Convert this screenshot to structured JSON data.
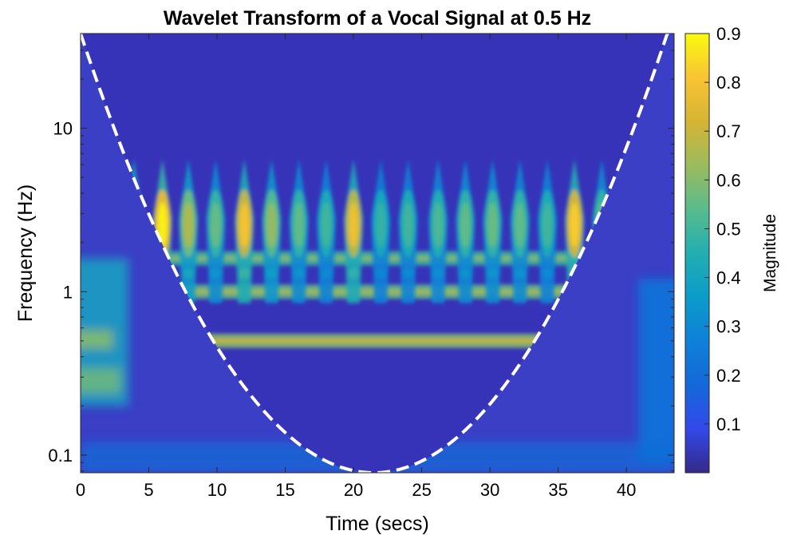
{
  "chart_data": {
    "type": "heatmap",
    "title": "Wavelet Transform of a Vocal Signal at 0.5 Hz",
    "xlabel": "Time (secs)",
    "ylabel": "Frequency (Hz)",
    "xlim": [
      0,
      43.5
    ],
    "ylim": [
      0.078,
      38
    ],
    "yscale": "log",
    "x_ticks": [
      0,
      5,
      10,
      15,
      20,
      25,
      30,
      35,
      40
    ],
    "y_ticks": [
      {
        "value": 0.1,
        "label": "0.1"
      },
      {
        "value": 1,
        "label": "1"
      },
      {
        "value": 10,
        "label": "10"
      }
    ],
    "colorbar": {
      "label": "Magnitude",
      "range": [
        0,
        0.9
      ],
      "ticks": [
        0.1,
        0.2,
        0.3,
        0.4,
        0.5,
        0.6,
        0.7,
        0.8,
        0.9
      ],
      "colormap": "parula"
    },
    "pulse_times": [
      3.9,
      6.0,
      7.9,
      9.9,
      12.0,
      14.0,
      16.0,
      18.0,
      20.0,
      22.0,
      24.0,
      26.2,
      28.2,
      30.2,
      32.2,
      34.2,
      36.2,
      38.2,
      40.0
    ],
    "pulse_magnitudes": [
      0.72,
      0.88,
      0.66,
      0.56,
      0.8,
      0.62,
      0.55,
      0.5,
      0.78,
      0.48,
      0.5,
      0.52,
      0.55,
      0.56,
      0.55,
      0.5,
      0.82,
      0.56,
      0.72
    ],
    "pulse_peak_frequency_hz": 2.8,
    "harmonic_bands": [
      {
        "frequency_hz": 0.5,
        "magnitude": 0.6
      },
      {
        "frequency_hz": 1.0,
        "magnitude": 0.55
      },
      {
        "frequency_hz": 1.6,
        "magnitude": 0.5
      }
    ],
    "cone_of_influence": {
      "style": "dashed",
      "color": "#ffffff",
      "minimum": {
        "time": 21.5,
        "frequency_hz": 0.078
      }
    }
  }
}
